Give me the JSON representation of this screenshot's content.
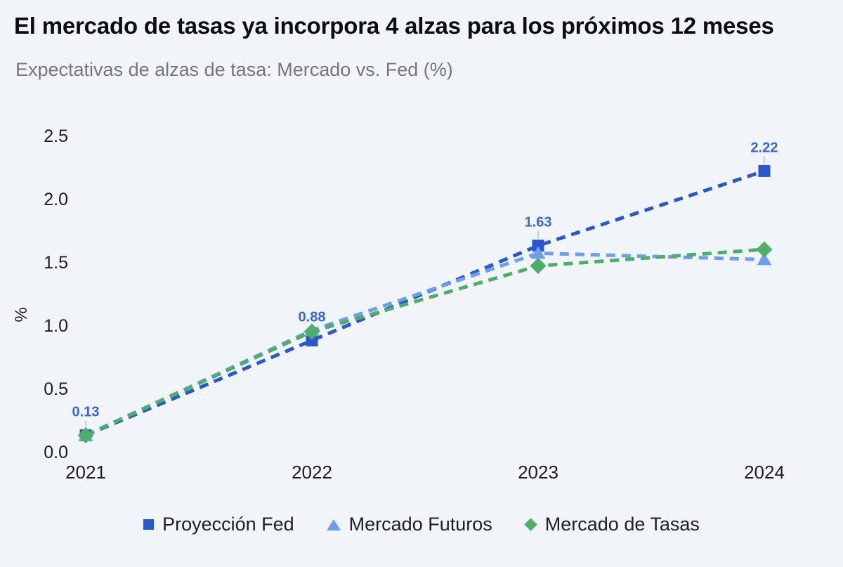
{
  "header": {
    "title": "El mercado de tasas ya incorpora 4 alzas para los próximos 12 meses",
    "subtitle": "Expectativas de alzas de tasa: Mercado vs. Fed (%)"
  },
  "colors": {
    "background": "#f1f4f9",
    "fed_blue": "#2b57c8",
    "futuros_blue": "#6d9eeb",
    "tasas_green": "#4dae68",
    "data_label_blue": "#3a65cd",
    "axis_text": "#1c1d1f",
    "subtitle_gray": "#757779",
    "leader_gray": "#c9ced6"
  },
  "chart_data": {
    "type": "line",
    "line_style": "dashed",
    "grid": false,
    "legend_position": "bottom",
    "x": [
      "2021",
      "2022",
      "2023",
      "2024"
    ],
    "xlabel": "",
    "ylabel": "%",
    "ylim": [
      0,
      2.5
    ],
    "yticks": [
      "0.0",
      "0.5",
      "1.0",
      "1.5",
      "2.0",
      "2.5"
    ],
    "series": [
      {
        "name": "Proyección Fed",
        "marker": "square",
        "color": "#2b57c8",
        "values": [
          0.13,
          0.88,
          1.63,
          2.22
        ],
        "data_labels": [
          "0.13",
          "0.88",
          "1.63",
          "2.22"
        ]
      },
      {
        "name": "Mercado Futuros",
        "marker": "triangle",
        "color": "#6d9eeb",
        "values": [
          0.13,
          0.96,
          1.57,
          1.52
        ],
        "data_labels": null
      },
      {
        "name": "Mercado de Tasas",
        "marker": "diamond",
        "color": "#4dae68",
        "values": [
          0.13,
          0.95,
          1.47,
          1.6
        ],
        "data_labels": null
      }
    ]
  }
}
